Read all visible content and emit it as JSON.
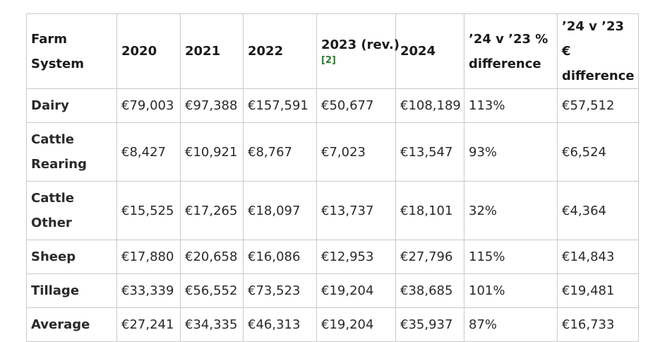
{
  "table": {
    "headers": {
      "farm_system": "Farm System",
      "y2020": "2020",
      "y2021": "2021",
      "y2022": "2022",
      "y2023": "2023 (rev.)",
      "y2023_ref": "[2]",
      "y2024": "2024",
      "pct_diff": "’24 v ’23 % difference",
      "eur_diff": "’24 v ’23 € difference"
    },
    "rows": [
      {
        "system": "Dairy",
        "y2020": "€79,003",
        "y2021": "€97,388",
        "y2022": "€157,591",
        "y2023": "€50,677",
        "y2024": "€108,189",
        "pct": "113%",
        "eur": "€57,512"
      },
      {
        "system": "Cattle Rearing",
        "y2020": "€8,427",
        "y2021": "€10,921",
        "y2022": "€8,767",
        "y2023": "€7,023",
        "y2024": "€13,547",
        "pct": "93%",
        "eur": "€6,524"
      },
      {
        "system": "Cattle Other",
        "y2020": "€15,525",
        "y2021": "€17,265",
        "y2022": "€18,097",
        "y2023": "€13,737",
        "y2024": "€18,101",
        "pct": "32%",
        "eur": "€4,364"
      },
      {
        "system": "Sheep",
        "y2020": "€17,880",
        "y2021": "€20,658",
        "y2022": "€16,086",
        "y2023": "€12,953",
        "y2024": "€27,796",
        "pct": "115%",
        "eur": "€14,843"
      },
      {
        "system": "Tillage",
        "y2020": "€33,339",
        "y2021": "€56,552",
        "y2022": "€73,523",
        "y2023": "€19,204",
        "y2024": "€38,685",
        "pct": "101%",
        "eur": "€19,481"
      },
      {
        "system": "Average",
        "y2020": "€27,241",
        "y2021": "€34,335",
        "y2022": "€46,313",
        "y2023": "€19,204",
        "y2024": "€35,937",
        "pct": "87%",
        "eur": "€16,733"
      }
    ]
  }
}
